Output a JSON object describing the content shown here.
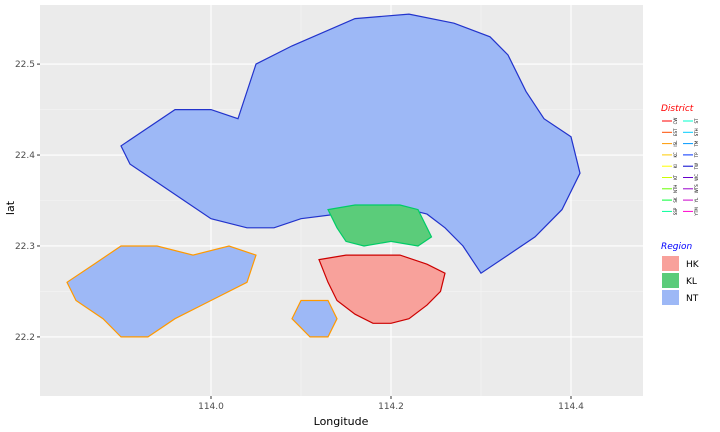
{
  "chart_data": {
    "type": "map",
    "title": "",
    "xlabel": "Longitude",
    "ylabel": "lat",
    "xlim": [
      113.81,
      114.48
    ],
    "ylim": [
      22.135,
      22.565
    ],
    "x_ticks": [
      "114.0",
      "114.2",
      "114.4"
    ],
    "x_tick_values": [
      114.0,
      114.2,
      114.4
    ],
    "y_ticks": [
      "22.2",
      "22.3",
      "22.4",
      "22.5"
    ],
    "y_tick_values": [
      22.2,
      22.3,
      22.4,
      22.5
    ],
    "grid": true,
    "region_legend": {
      "title": "Region",
      "title_color": "#0000ff",
      "placement": "right",
      "items": [
        {
          "label": "HK",
          "color": "#f8a19b"
        },
        {
          "label": "KL",
          "color": "#5bcc7a"
        },
        {
          "label": "NT",
          "color": "#9db8f6"
        }
      ]
    },
    "district_legend": {
      "title": "District",
      "title_color": "#ff0000",
      "placement": "right",
      "codes": [
        "CW",
        "EST",
        "ISL",
        "KC",
        "KI",
        "KT",
        "NTH",
        "SK",
        "SSP",
        "ST",
        "STH",
        "TM",
        "TP",
        "TW",
        "WC",
        "WTS",
        "YL",
        "YTM"
      ],
      "colors": [
        "#ff0000",
        "#ff4d00",
        "#ff9900",
        "#ffcc00",
        "#ffff00",
        "#ccff00",
        "#66ff00",
        "#00ff33",
        "#00ff99",
        "#00ffcc",
        "#00ccff",
        "#0099ff",
        "#0033ff",
        "#0000cc",
        "#6600cc",
        "#9900cc",
        "#cc00cc",
        "#ff00cc"
      ]
    },
    "regions": [
      {
        "name": "NT",
        "fill": "#9db8f6",
        "outline": "#2233cc",
        "polygon": [
          [
            114.03,
            22.44
          ],
          [
            114.05,
            22.5
          ],
          [
            114.09,
            22.52
          ],
          [
            114.16,
            22.55
          ],
          [
            114.22,
            22.555
          ],
          [
            114.27,
            22.545
          ],
          [
            114.31,
            22.53
          ],
          [
            114.33,
            22.51
          ],
          [
            114.35,
            22.47
          ],
          [
            114.37,
            22.44
          ],
          [
            114.4,
            22.42
          ],
          [
            114.41,
            22.38
          ],
          [
            114.39,
            22.34
          ],
          [
            114.36,
            22.31
          ],
          [
            114.33,
            22.29
          ],
          [
            114.3,
            22.27
          ],
          [
            114.28,
            22.3
          ],
          [
            114.26,
            22.32
          ],
          [
            114.24,
            22.335
          ],
          [
            114.22,
            22.34
          ],
          [
            114.2,
            22.345
          ],
          [
            114.17,
            22.34
          ],
          [
            114.14,
            22.335
          ],
          [
            114.1,
            22.33
          ],
          [
            114.07,
            22.32
          ],
          [
            114.04,
            22.32
          ],
          [
            114.0,
            22.33
          ],
          [
            113.97,
            22.35
          ],
          [
            113.94,
            22.37
          ],
          [
            113.91,
            22.39
          ],
          [
            113.9,
            22.41
          ],
          [
            113.93,
            22.43
          ],
          [
            113.96,
            22.45
          ],
          [
            114.0,
            22.45
          ]
        ]
      },
      {
        "name": "NT",
        "fill": "#9db8f6",
        "outline": "#ff9900",
        "polygon": [
          [
            113.87,
            22.28
          ],
          [
            113.9,
            22.3
          ],
          [
            113.94,
            22.3
          ],
          [
            113.98,
            22.29
          ],
          [
            114.02,
            22.3
          ],
          [
            114.05,
            22.29
          ],
          [
            114.04,
            22.26
          ],
          [
            114.0,
            22.24
          ],
          [
            113.96,
            22.22
          ],
          [
            113.93,
            22.2
          ],
          [
            113.9,
            22.2
          ],
          [
            113.88,
            22.22
          ],
          [
            113.85,
            22.24
          ],
          [
            113.84,
            22.26
          ]
        ]
      },
      {
        "name": "NT",
        "fill": "#9db8f6",
        "outline": "#ff9900",
        "polygon": [
          [
            114.1,
            22.24
          ],
          [
            114.13,
            22.24
          ],
          [
            114.14,
            22.22
          ],
          [
            114.13,
            22.2
          ],
          [
            114.11,
            22.2
          ],
          [
            114.09,
            22.22
          ]
        ]
      },
      {
        "name": "KL",
        "fill": "#5bcc7a",
        "outline": "#00cc66",
        "polygon": [
          [
            114.13,
            22.34
          ],
          [
            114.16,
            22.345
          ],
          [
            114.19,
            22.345
          ],
          [
            114.21,
            22.345
          ],
          [
            114.23,
            22.34
          ],
          [
            114.24,
            22.32
          ],
          [
            114.245,
            22.31
          ],
          [
            114.23,
            22.3
          ],
          [
            114.2,
            22.305
          ],
          [
            114.17,
            22.3
          ],
          [
            114.15,
            22.305
          ],
          [
            114.14,
            22.32
          ]
        ]
      },
      {
        "name": "HK",
        "fill": "#f8a19b",
        "outline": "#cc0000",
        "polygon": [
          [
            114.12,
            22.285
          ],
          [
            114.15,
            22.29
          ],
          [
            114.18,
            22.29
          ],
          [
            114.21,
            22.29
          ],
          [
            114.24,
            22.28
          ],
          [
            114.26,
            22.27
          ],
          [
            114.255,
            22.25
          ],
          [
            114.24,
            22.235
          ],
          [
            114.22,
            22.22
          ],
          [
            114.2,
            22.215
          ],
          [
            114.18,
            22.215
          ],
          [
            114.16,
            22.225
          ],
          [
            114.14,
            22.24
          ],
          [
            114.13,
            22.26
          ]
        ]
      }
    ]
  }
}
